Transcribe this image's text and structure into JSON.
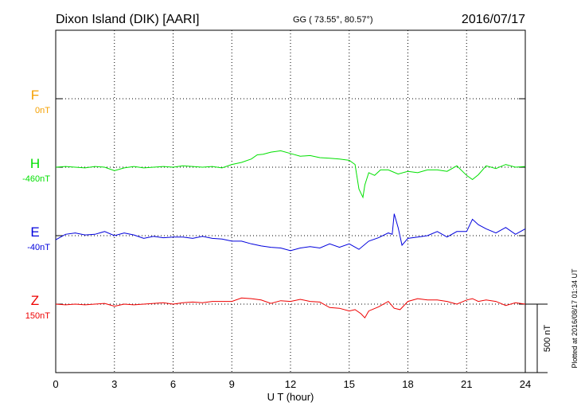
{
  "header": {
    "station": "Dixon Island (DIK)  [AARI]",
    "coords": "GG ( 73.55°,  80.57°)",
    "date": "2016/07/17"
  },
  "footer": {
    "plotted": "Plotted at 2016/08/17 01:34 UT"
  },
  "colors": {
    "F": "#f5a000",
    "H": "#00e000",
    "E": "#0000dd",
    "Z": "#ee0000"
  },
  "chart_data": {
    "type": "line",
    "title": "Dixon Island (DIK)  [AARI]",
    "xlabel": "U T (hour)",
    "xlim": [
      0,
      24
    ],
    "xticks": [
      "0",
      "3",
      "6",
      "9",
      "12",
      "15",
      "18",
      "21",
      "24"
    ],
    "grid": true,
    "scale_bar": {
      "label": "500 nT",
      "value_nT": 500
    },
    "series": [
      {
        "name": "F",
        "baseline": "0nT",
        "x": [],
        "y": []
      },
      {
        "name": "H",
        "baseline": "-460nT",
        "x": [
          0,
          0.5,
          1,
          1.5,
          2,
          2.5,
          3,
          3.5,
          4,
          4.5,
          5,
          5.5,
          6,
          6.5,
          7,
          7.5,
          8,
          8.5,
          9,
          9.5,
          10,
          10.3,
          10.6,
          11,
          11.5,
          12,
          12.5,
          13,
          13.5,
          14,
          14.5,
          15,
          15.3,
          15.5,
          15.6,
          15.7,
          15.8,
          16,
          16.3,
          16.6,
          17,
          17.5,
          18,
          18.5,
          19,
          19.5,
          20,
          20.5,
          21,
          21.3,
          21.6,
          22,
          22.5,
          23,
          23.5,
          24
        ],
        "y": [
          0,
          5,
          0,
          -5,
          5,
          0,
          -25,
          -5,
          5,
          -5,
          0,
          5,
          0,
          10,
          5,
          0,
          5,
          -5,
          20,
          35,
          60,
          90,
          95,
          110,
          120,
          100,
          80,
          85,
          70,
          65,
          60,
          50,
          20,
          -160,
          -190,
          -220,
          -130,
          -40,
          -60,
          -20,
          -20,
          -50,
          -30,
          -40,
          -20,
          -20,
          -30,
          10,
          -60,
          -90,
          -55,
          10,
          -10,
          20,
          0,
          5
        ]
      },
      {
        "name": "E",
        "baseline": "-40nT",
        "x": [
          0,
          0.5,
          1,
          1.5,
          2,
          2.5,
          3,
          3.5,
          4,
          4.5,
          5,
          5.5,
          6,
          6.5,
          7,
          7.5,
          8,
          8.5,
          9,
          9.5,
          10,
          10.5,
          11,
          11.5,
          12,
          12.5,
          13,
          13.5,
          14,
          14.5,
          15,
          15.5,
          16,
          16.5,
          17,
          17.2,
          17.3,
          17.5,
          17.7,
          18,
          18.5,
          19,
          19.5,
          20,
          20.5,
          21,
          21.3,
          21.6,
          22,
          22.5,
          23,
          23.5,
          24
        ],
        "y": [
          -30,
          10,
          20,
          5,
          10,
          30,
          0,
          20,
          5,
          -20,
          -5,
          -15,
          -10,
          -10,
          -20,
          -5,
          -20,
          -25,
          -40,
          -40,
          -60,
          -75,
          -85,
          -90,
          -110,
          -90,
          -80,
          -90,
          -60,
          -85,
          -60,
          -100,
          -40,
          -15,
          20,
          10,
          160,
          60,
          -70,
          -20,
          -10,
          0,
          30,
          -10,
          30,
          30,
          120,
          80,
          50,
          20,
          60,
          10,
          50
        ]
      },
      {
        "name": "Z",
        "baseline": "150nT",
        "x": [
          0,
          0.5,
          1,
          1.5,
          2,
          2.5,
          3,
          3.5,
          4,
          4.5,
          5,
          5.5,
          6,
          6.5,
          7,
          7.5,
          8,
          8.5,
          9,
          9.5,
          10,
          10.5,
          11,
          11.5,
          12,
          12.5,
          13,
          13.5,
          14,
          14.5,
          15,
          15.3,
          15.6,
          15.8,
          16,
          16.5,
          17,
          17.3,
          17.6,
          18,
          18.5,
          19,
          19.5,
          20,
          20.5,
          21,
          21.3,
          21.6,
          22,
          22.5,
          23,
          23.5,
          24
        ],
        "y": [
          0,
          -5,
          0,
          -5,
          0,
          5,
          -15,
          0,
          -5,
          0,
          5,
          10,
          0,
          10,
          15,
          10,
          20,
          20,
          20,
          45,
          40,
          30,
          5,
          25,
          20,
          35,
          20,
          15,
          -25,
          -30,
          -50,
          -40,
          -70,
          -100,
          -50,
          -20,
          20,
          -30,
          -40,
          20,
          40,
          30,
          30,
          20,
          0,
          30,
          40,
          20,
          30,
          20,
          -10,
          10,
          0
        ]
      }
    ]
  }
}
